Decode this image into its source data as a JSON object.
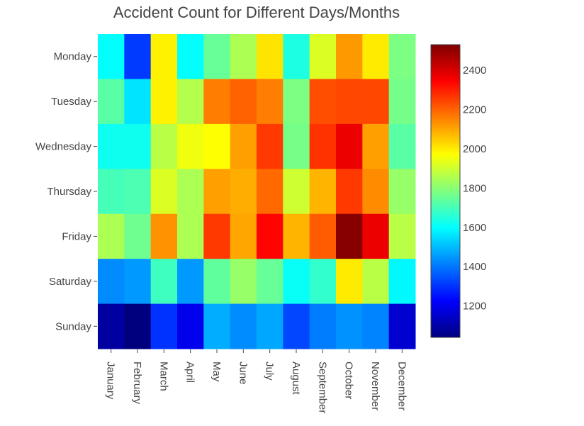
{
  "chart_data": {
    "type": "heatmap",
    "title": "Accident Count for Different Days/Months",
    "x_categories": [
      "January",
      "February",
      "March",
      "April",
      "May",
      "June",
      "July",
      "August",
      "September",
      "October",
      "November",
      "December"
    ],
    "y_categories": [
      "Monday",
      "Tuesday",
      "Wednesday",
      "Thursday",
      "Friday",
      "Saturday",
      "Sunday"
    ],
    "values": [
      [
        1600,
        1310,
        1990,
        1600,
        1750,
        1850,
        2010,
        1640,
        1920,
        2120,
        2000,
        1780
      ],
      [
        1730,
        1560,
        1990,
        1860,
        2160,
        2200,
        2160,
        1780,
        2230,
        2240,
        2240,
        1770
      ],
      [
        1620,
        1620,
        1870,
        1950,
        1970,
        2110,
        2260,
        1770,
        2270,
        2370,
        2110,
        1730
      ],
      [
        1700,
        1710,
        1920,
        1850,
        2110,
        2090,
        2190,
        1900,
        2080,
        2260,
        2140,
        1820
      ],
      [
        1850,
        1760,
        2130,
        1850,
        2260,
        2100,
        2340,
        2080,
        2210,
        2520,
        2370,
        1870
      ],
      [
        1430,
        1450,
        1690,
        1450,
        1740,
        1820,
        1750,
        1610,
        1670,
        2000,
        1870,
        1590
      ],
      [
        1090,
        1040,
        1300,
        1200,
        1480,
        1430,
        1470,
        1330,
        1410,
        1440,
        1420,
        1160
      ]
    ],
    "zmin": 1040,
    "zmax": 2530,
    "colorbar_ticks": [
      1200,
      1400,
      1600,
      1800,
      2000,
      2200,
      2400
    ],
    "colorscale": [
      "#00007f",
      "#0000ff",
      "#007fff",
      "#00ffff",
      "#7fff7f",
      "#ffff00",
      "#ff7f00",
      "#ff0000",
      "#7f0000"
    ]
  }
}
